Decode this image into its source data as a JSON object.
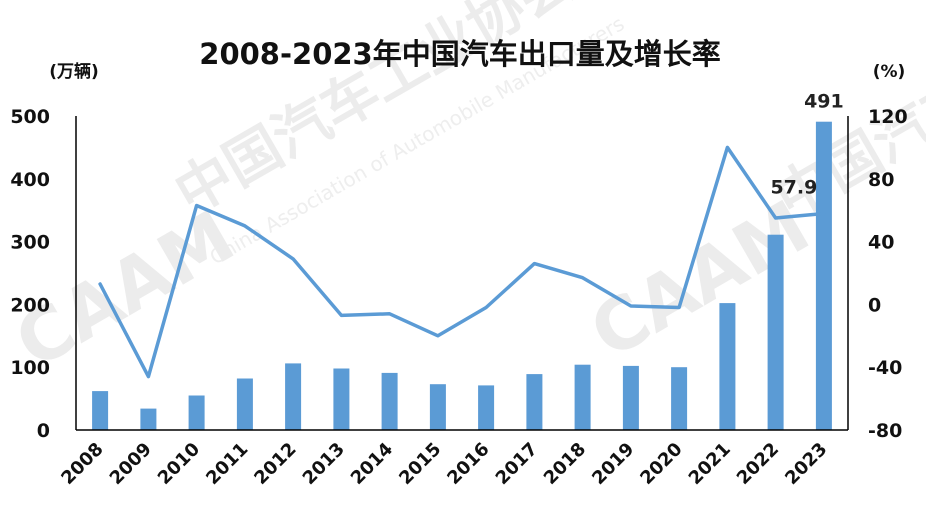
{
  "watermark": {
    "org_name_cn": "中国汽车工业协会",
    "org_name_en": "China Association of Automobile Manufacturers",
    "logo_text": "CAAM"
  },
  "chart_data": {
    "type": "bar+line",
    "title": "2008-2023年中国汽车出口量及增长率",
    "left_axis_unit": "(万辆)",
    "right_axis_unit": "(%)",
    "categories": [
      "2008",
      "2009",
      "2010",
      "2011",
      "2012",
      "2013",
      "2014",
      "2015",
      "2016",
      "2017",
      "2018",
      "2019",
      "2020",
      "2021",
      "2022",
      "2023"
    ],
    "series": [
      {
        "kind": "bar",
        "axis": "left",
        "values": [
          62,
          34,
          55,
          82,
          106,
          98,
          91,
          73,
          71,
          89,
          104,
          102,
          100,
          202,
          311,
          491
        ]
      },
      {
        "kind": "line",
        "axis": "right",
        "values": [
          13,
          -46,
          63,
          50,
          29,
          -7,
          -6,
          -20,
          -2,
          26,
          17,
          -1,
          -2,
          100,
          55,
          57.9
        ]
      }
    ],
    "data_labels": [
      {
        "series": 0,
        "index": 15,
        "text": "491"
      },
      {
        "series": 1,
        "index": 15,
        "text": "57.9"
      }
    ],
    "left_ylim": [
      0,
      500
    ],
    "left_ticks": [
      "0",
      "100",
      "200",
      "300",
      "400",
      "500"
    ],
    "right_ylim": [
      -80,
      120
    ],
    "right_ticks": [
      "-80",
      "-40",
      "0",
      "40",
      "80",
      "120"
    ],
    "colors": {
      "bar": "#5b9bd5",
      "line": "#5b9bd5",
      "axis": "#000000"
    },
    "grid": false,
    "legend": "none"
  }
}
